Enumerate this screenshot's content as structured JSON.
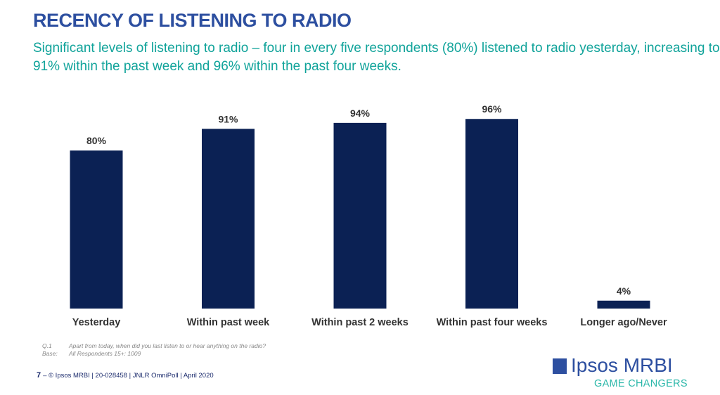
{
  "title": "RECENCY OF LISTENING TO RADIO",
  "subtitle": "Significant levels of listening to radio – four in every five respondents (80%) listened to radio yesterday, increasing to 91% within the past week and 96% within the past four weeks.",
  "chart_data": {
    "type": "bar",
    "categories": [
      "Yesterday",
      "Within past week",
      "Within past 2 weeks",
      "Within past four weeks",
      "Longer ago/Never"
    ],
    "values": [
      80,
      91,
      94,
      96,
      4
    ],
    "data_labels": [
      "80%",
      "91%",
      "94%",
      "96%",
      "4%"
    ],
    "ylim": [
      0,
      100
    ],
    "grid": false,
    "bar_color": "#0b2154"
  },
  "notes": {
    "q_key": "Q.1",
    "q_text": "Apart from today, when did you last listen to or hear anything on the radio?",
    "base_key": "Base:",
    "base_text": "All Respondents 15+:  1009"
  },
  "footer": {
    "page": "7",
    "text": "–  © Ipsos MRBI | 20-028458 | JNLR OmniPoll | April 2020"
  },
  "logo": {
    "box": "Ipsos",
    "brand": "Ipsos MRBI",
    "tagline": "GAME CHANGERS"
  }
}
